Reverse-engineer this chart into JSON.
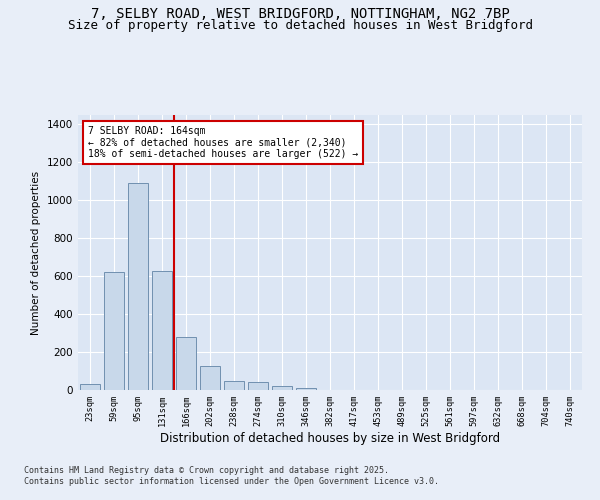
{
  "title_line1": "7, SELBY ROAD, WEST BRIDGFORD, NOTTINGHAM, NG2 7BP",
  "title_line2": "Size of property relative to detached houses in West Bridgford",
  "xlabel": "Distribution of detached houses by size in West Bridgford",
  "ylabel": "Number of detached properties",
  "categories": [
    "23sqm",
    "59sqm",
    "95sqm",
    "131sqm",
    "166sqm",
    "202sqm",
    "238sqm",
    "274sqm",
    "310sqm",
    "346sqm",
    "382sqm",
    "417sqm",
    "453sqm",
    "489sqm",
    "525sqm",
    "561sqm",
    "597sqm",
    "632sqm",
    "668sqm",
    "704sqm",
    "740sqm"
  ],
  "bar_values": [
    30,
    620,
    1090,
    630,
    280,
    125,
    50,
    40,
    20,
    10,
    0,
    0,
    0,
    0,
    0,
    0,
    0,
    0,
    0,
    0,
    0
  ],
  "bar_color": "#c8d8ea",
  "bar_edge_color": "#7090b0",
  "vline_color": "#cc0000",
  "vline_index": 3.5,
  "annotation_text": "7 SELBY ROAD: 164sqm\n← 82% of detached houses are smaller (2,340)\n18% of semi-detached houses are larger (522) →",
  "annotation_box_color": "#cc0000",
  "ylim": [
    0,
    1450
  ],
  "yticks": [
    0,
    200,
    400,
    600,
    800,
    1000,
    1200,
    1400
  ],
  "bg_color": "#e8eef8",
  "plot_bg_color": "#dce6f4",
  "grid_color": "#ffffff",
  "footer_line1": "Contains HM Land Registry data © Crown copyright and database right 2025.",
  "footer_line2": "Contains public sector information licensed under the Open Government Licence v3.0.",
  "title_fontsize": 10,
  "subtitle_fontsize": 9,
  "bar_width": 0.85
}
